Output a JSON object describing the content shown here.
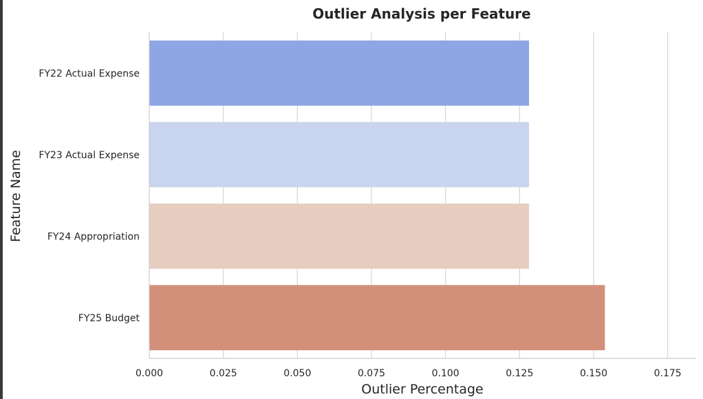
{
  "chart_data": {
    "type": "bar",
    "orientation": "horizontal",
    "title": "Outlier Analysis per Feature",
    "xlabel": "Outlier Percentage",
    "ylabel": "Feature Name",
    "categories": [
      "FY22 Actual Expense",
      "FY23 Actual Expense",
      "FY24 Appropriation",
      "FY25 Budget"
    ],
    "values": [
      0.1282,
      0.1282,
      0.1282,
      0.1538
    ],
    "colors": [
      "#8fa6e4",
      "#c9d4ee",
      "#e6cdc0",
      "#d2907b"
    ],
    "xlim": [
      0,
      0.185
    ],
    "xticks": [
      "0.000",
      "0.025",
      "0.050",
      "0.075",
      "0.100",
      "0.125",
      "0.150",
      "0.175"
    ],
    "grid": "vertical",
    "legend": "none"
  }
}
